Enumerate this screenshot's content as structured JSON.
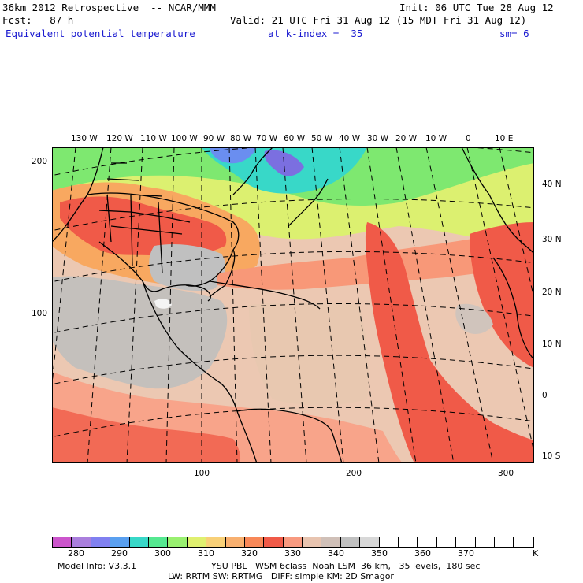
{
  "header": {
    "line1_left": "36km 2012 Retrospective  -- NCAR/MMM",
    "line1_right": "Init: 06 UTC Tue 28 Aug 12",
    "line2_left": "Fcst:   87 h",
    "line2_right": "Valid: 21 UTC Fri 31 Aug 12 (15 MDT Fri 31 Aug 12)",
    "field": "Equivalent potential temperature",
    "level": "at k-index =  35",
    "smoothing": "sm= 6"
  },
  "top_lon_labels": [
    "130 W",
    "120 W",
    "110 W",
    "100 W",
    "90 W",
    "80 W",
    "70 W",
    "60 W",
    "50 W",
    "40 W",
    "30 W",
    "20 W",
    "10 W",
    "0",
    "10 E"
  ],
  "right_lat_labels": [
    "40 N",
    "30 N",
    "20 N",
    "10 N",
    "0",
    "10 S"
  ],
  "left_grid_labels": [
    "200",
    "100"
  ],
  "bottom_grid_labels": [
    "100",
    "200",
    "300"
  ],
  "colorbar": {
    "labels": [
      "280",
      "290",
      "300",
      "310",
      "320",
      "330",
      "340",
      "350",
      "360",
      "370"
    ],
    "unit": "K",
    "colors": [
      "#cc55cc",
      "#aa7fdd",
      "#8080f0",
      "#5aa0f0",
      "#38d8c8",
      "#55e890",
      "#99f070",
      "#e0f070",
      "#f8d078",
      "#f8b070",
      "#f88858",
      "#f05a48",
      "#f89a80",
      "#e8c4b0",
      "#d0c0b8",
      "#c0c0c0",
      "#d8d8d8",
      "#ffffff",
      "#ffffff",
      "#ffffff",
      "#ffffff",
      "#ffffff",
      "#ffffff",
      "#ffffff",
      "#ffffff"
    ]
  },
  "footer": {
    "line1_left": "Model Info: V3.3.1",
    "line1_right": "YSU PBL   WSM 6class  Noah LSM  36 km,   35 levels,  180 sec",
    "line2": "LW: RRTM SW: RRTMG   DIFF: simple KM: 2D Smagor"
  }
}
